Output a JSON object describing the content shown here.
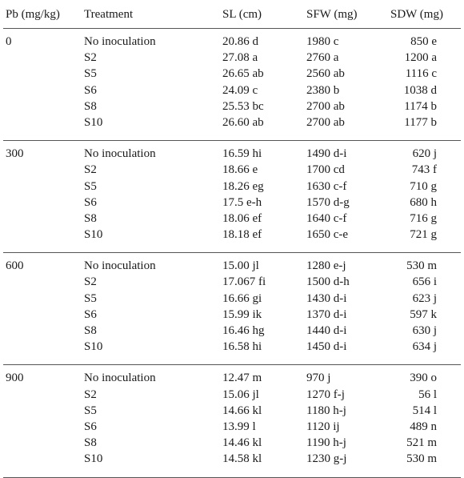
{
  "headers": {
    "pb": "Pb (mg/kg)",
    "treatment": "Treatment",
    "sl": "SL (cm)",
    "sfw": "SFW (mg)",
    "sdw": "SDW (mg)"
  },
  "groups": [
    {
      "pb": "0",
      "rows": [
        {
          "treatment": "No inoculation",
          "sl": "20.86 d",
          "sfw": "1980 c",
          "sdw": "850 e"
        },
        {
          "treatment": "S2",
          "sl": "27.08 a",
          "sfw": "2760 a",
          "sdw": "1200 a"
        },
        {
          "treatment": "S5",
          "sl": "26.65 ab",
          "sfw": "2560 ab",
          "sdw": "1116 c"
        },
        {
          "treatment": "S6",
          "sl": "24.09 c",
          "sfw": "2380 b",
          "sdw": "1038 d"
        },
        {
          "treatment": "S8",
          "sl": "25.53 bc",
          "sfw": "2700 ab",
          "sdw": "1174 b"
        },
        {
          "treatment": "S10",
          "sl": "26.60 ab",
          "sfw": "2700 ab",
          "sdw": "1177 b"
        }
      ]
    },
    {
      "pb": "300",
      "rows": [
        {
          "treatment": "No inoculation",
          "sl": "16.59 hi",
          "sfw": "1490 d-i",
          "sdw": "620 j"
        },
        {
          "treatment": "S2",
          "sl": "18.66 e",
          "sfw": "1700 cd",
          "sdw": "743 f"
        },
        {
          "treatment": "S5",
          "sl": "18.26 eg",
          "sfw": "1630 c-f",
          "sdw": "710 g"
        },
        {
          "treatment": "S6",
          "sl": "17.5 e-h",
          "sfw": "1570 d-g",
          "sdw": "680 h"
        },
        {
          "treatment": "S8",
          "sl": "18.06 ef",
          "sfw": "1640 c-f",
          "sdw": "716 g"
        },
        {
          "treatment": "S10",
          "sl": "18.18 ef",
          "sfw": "1650 c-e",
          "sdw": "721 g"
        }
      ]
    },
    {
      "pb": "600",
      "rows": [
        {
          "treatment": "No inoculation",
          "sl": "15.00 jl",
          "sfw": "1280 e-j",
          "sdw": "530 m"
        },
        {
          "treatment": "S2",
          "sl": "17.067 fi",
          "sfw": "1500 d-h",
          "sdw": "656 i"
        },
        {
          "treatment": "S5",
          "sl": "16.66 gi",
          "sfw": "1430 d-i",
          "sdw": "623 j"
        },
        {
          "treatment": "S6",
          "sl": "15.99 ik",
          "sfw": "1370 d-i",
          "sdw": "597 k"
        },
        {
          "treatment": "S8",
          "sl": "16.46 hg",
          "sfw": "1440 d-i",
          "sdw": "630 j"
        },
        {
          "treatment": "S10",
          "sl": "16.58 hi",
          "sfw": "1450 d-i",
          "sdw": "634 j"
        }
      ]
    },
    {
      "pb": "900",
      "rows": [
        {
          "treatment": "No inoculation",
          "sl": "12.47 m",
          "sfw": "970 j",
          "sdw": "390 o"
        },
        {
          "treatment": "S2",
          "sl": "15.06 jl",
          "sfw": "1270 f-j",
          "sdw": "56 l"
        },
        {
          "treatment": "S5",
          "sl": "14.66 kl",
          "sfw": "1180 h-j",
          "sdw": "514 l"
        },
        {
          "treatment": "S6",
          "sl": "13.99 l",
          "sfw": "1120 ij",
          "sdw": "489 n"
        },
        {
          "treatment": "S8",
          "sl": "14.46 kl",
          "sfw": "1190 h-j",
          "sdw": "521 m"
        },
        {
          "treatment": "S10",
          "sl": "14.58 kl",
          "sfw": "1230 g-j",
          "sdw": "530 m"
        }
      ]
    }
  ]
}
